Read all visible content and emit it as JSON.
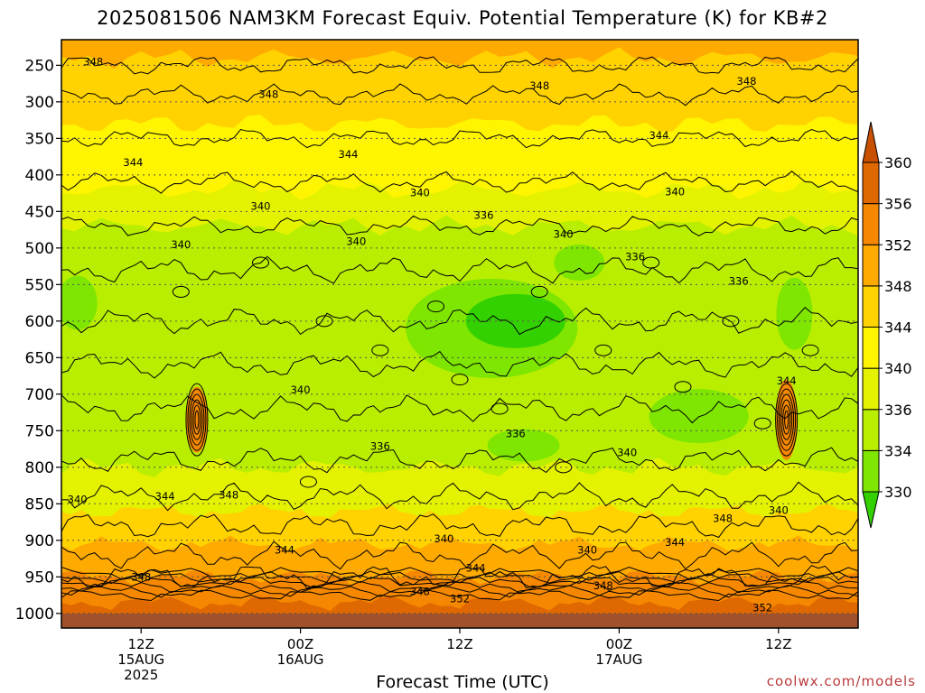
{
  "header": {
    "title": "2025081506 NAM3KM Forecast Equiv. Potential Temperature (K) for KB#2"
  },
  "footer": {
    "credit": "coolwx.com/models"
  },
  "chart_data": {
    "type": "heatmap",
    "title": "2025081506 NAM3KM Forecast Equiv. Potential Temperature (K) for KB#2",
    "xlabel": "Forecast Time (UTC)",
    "ylabel": "",
    "y_ticks": [
      250,
      300,
      350,
      400,
      450,
      500,
      550,
      600,
      650,
      700,
      750,
      800,
      850,
      900,
      950,
      1000
    ],
    "x_ticks": [
      {
        "line1": "12Z",
        "line2": "15AUG",
        "line3": "2025"
      },
      {
        "line1": "00Z",
        "line2": "16AUG",
        "line3": ""
      },
      {
        "line1": "12Z",
        "line2": "",
        "line3": ""
      },
      {
        "line1": "00Z",
        "line2": "17AUG",
        "line3": ""
      },
      {
        "line1": "12Z",
        "line2": "",
        "line3": ""
      }
    ],
    "colorbar": {
      "levels": [
        330,
        334,
        336,
        340,
        344,
        348,
        352,
        356,
        360
      ],
      "colors": [
        "#33d100",
        "#7ee600",
        "#b9ee00",
        "#e4f200",
        "#fff500",
        "#ffd200",
        "#ffaa00",
        "#f58800",
        "#e06800",
        "#c85000"
      ]
    },
    "contour_labels": [
      {
        "t": 0.04,
        "p": 245,
        "v": 348
      },
      {
        "t": 0.26,
        "p": 290,
        "v": 348
      },
      {
        "t": 0.6,
        "p": 278,
        "v": 348
      },
      {
        "t": 0.86,
        "p": 272,
        "v": 348
      },
      {
        "t": 0.09,
        "p": 383,
        "v": 344
      },
      {
        "t": 0.36,
        "p": 372,
        "v": 344
      },
      {
        "t": 0.75,
        "p": 346,
        "v": 344
      },
      {
        "t": 0.25,
        "p": 443,
        "v": 340
      },
      {
        "t": 0.45,
        "p": 424,
        "v": 340
      },
      {
        "t": 0.77,
        "p": 423,
        "v": 340
      },
      {
        "t": 0.15,
        "p": 495,
        "v": 340
      },
      {
        "t": 0.37,
        "p": 491,
        "v": 340
      },
      {
        "t": 0.63,
        "p": 481,
        "v": 340
      },
      {
        "t": 0.53,
        "p": 455,
        "v": 336
      },
      {
        "t": 0.72,
        "p": 512,
        "v": 336
      },
      {
        "t": 0.85,
        "p": 545,
        "v": 336
      },
      {
        "t": 0.3,
        "p": 694,
        "v": 340
      },
      {
        "t": 0.4,
        "p": 771,
        "v": 336
      },
      {
        "t": 0.57,
        "p": 754,
        "v": 336
      },
      {
        "t": 0.02,
        "p": 844,
        "v": 340
      },
      {
        "t": 0.13,
        "p": 840,
        "v": 344
      },
      {
        "t": 0.21,
        "p": 838,
        "v": 348
      },
      {
        "t": 0.28,
        "p": 913,
        "v": 344
      },
      {
        "t": 0.48,
        "p": 898,
        "v": 340
      },
      {
        "t": 0.52,
        "p": 938,
        "v": 344
      },
      {
        "t": 0.66,
        "p": 913,
        "v": 340
      },
      {
        "t": 0.77,
        "p": 903,
        "v": 344
      },
      {
        "t": 0.83,
        "p": 870,
        "v": 348
      },
      {
        "t": 0.9,
        "p": 859,
        "v": 340
      },
      {
        "t": 0.91,
        "p": 682,
        "v": 344
      },
      {
        "t": 0.71,
        "p": 780,
        "v": 340
      },
      {
        "t": 0.1,
        "p": 950,
        "v": 348
      },
      {
        "t": 0.45,
        "p": 970,
        "v": 348
      },
      {
        "t": 0.5,
        "p": 980,
        "v": 352
      },
      {
        "t": 0.68,
        "p": 962,
        "v": 348
      },
      {
        "t": 0.88,
        "p": 992,
        "v": 352
      }
    ]
  }
}
